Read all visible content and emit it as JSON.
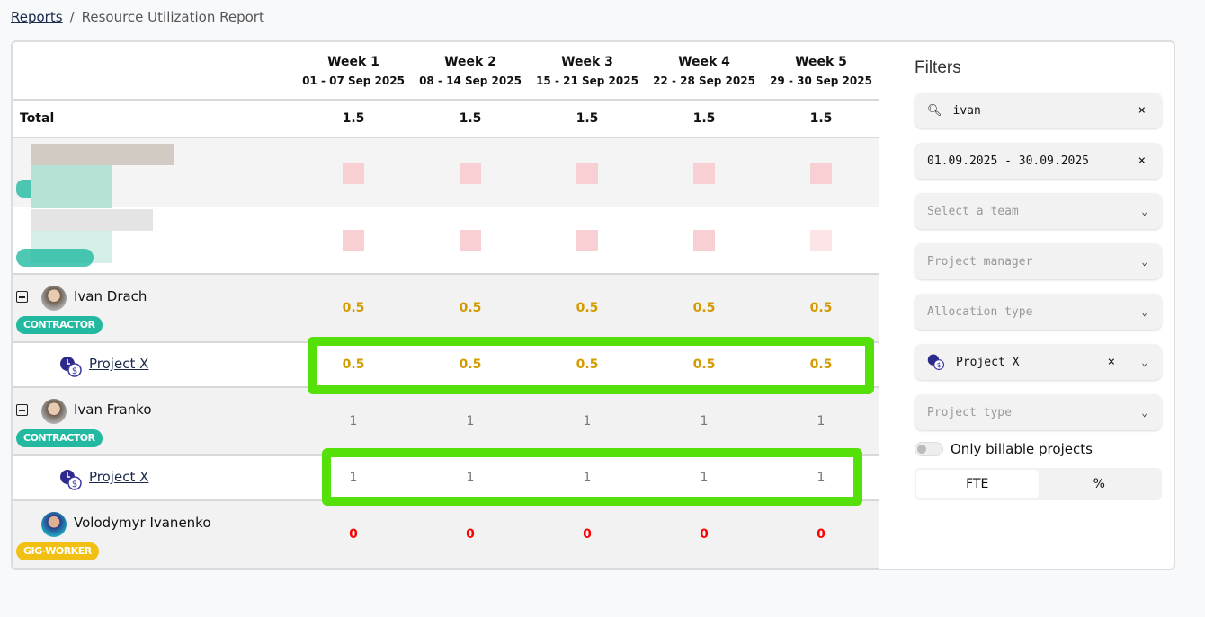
{
  "breadcrumb": {
    "root": "Reports",
    "separator": "/",
    "current": "Resource Utilization Report"
  },
  "weeks": [
    {
      "label": "Week 1",
      "range": "01 - 07 Sep 2025"
    },
    {
      "label": "Week 2",
      "range": "08 - 14 Sep 2025"
    },
    {
      "label": "Week 3",
      "range": "15 - 21 Sep 2025"
    },
    {
      "label": "Week 4",
      "range": "22 - 28 Sep 2025"
    },
    {
      "label": "Week 5",
      "range": "29 - 30 Sep 2025"
    }
  ],
  "total": {
    "label": "Total",
    "values": [
      "1.5",
      "1.5",
      "1.5",
      "1.5",
      "1.5"
    ]
  },
  "people": [
    {
      "name": "Ivan Drach",
      "badge": "CONTRACTOR",
      "values": [
        "0.5",
        "0.5",
        "0.5",
        "0.5",
        "0.5"
      ],
      "project": {
        "name": "Project X",
        "values": [
          "0.5",
          "0.5",
          "0.5",
          "0.5",
          "0.5"
        ]
      }
    },
    {
      "name": "Ivan Franko",
      "badge": "CONTRACTOR",
      "values": [
        "1",
        "1",
        "1",
        "1",
        "1"
      ],
      "project": {
        "name": "Project X",
        "values": [
          "1",
          "1",
          "1",
          "1",
          "1"
        ]
      }
    },
    {
      "name": "Volodymyr Ivanenko",
      "badge": "GIG-WORKER",
      "values": [
        "0",
        "0",
        "0",
        "0",
        "0"
      ]
    }
  ],
  "filters": {
    "title": "Filters",
    "search": "ivan",
    "date_range": "01.09.2025 - 30.09.2025",
    "team_placeholder": "Select a team",
    "pm_placeholder": "Project manager",
    "alloc_placeholder": "Allocation type",
    "project": "Project X",
    "project_type_placeholder": "Project type",
    "billable_label": "Only billable projects",
    "billable_on": false,
    "unit_options": [
      "FTE",
      "%"
    ],
    "unit_selected": "FTE",
    "clear": "×"
  },
  "colors": {
    "highlight": "#55e00a",
    "contractor": "#22b9a0",
    "gig": "#f2c012",
    "partial": "#d49b00",
    "zero": "#ff0000"
  }
}
